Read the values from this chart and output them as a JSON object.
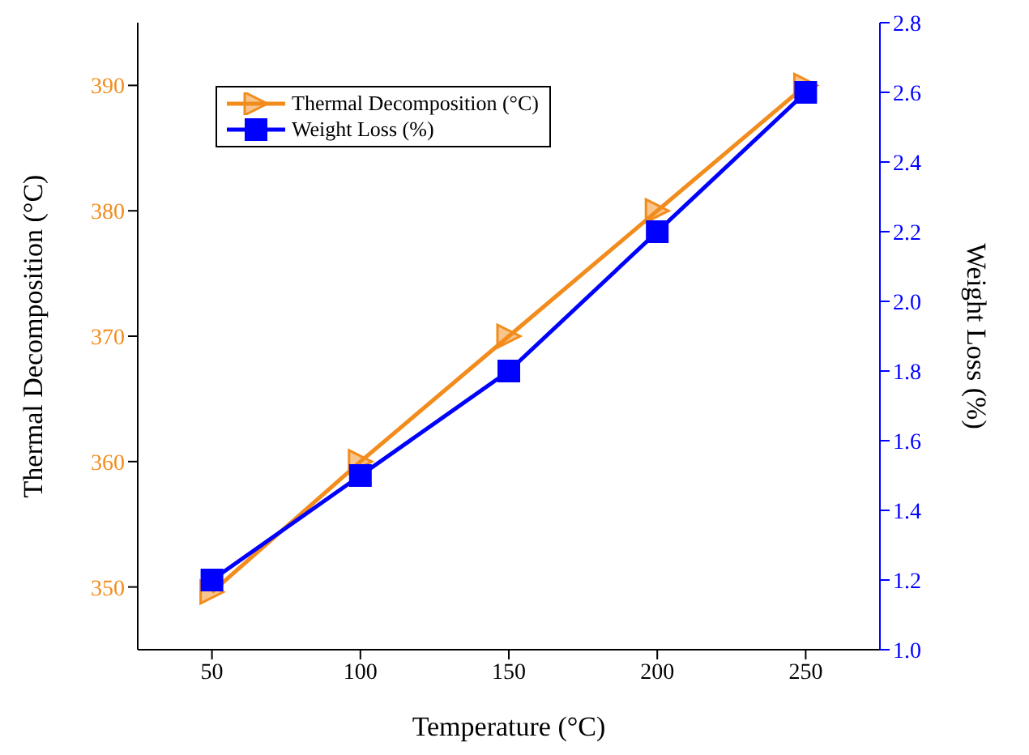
{
  "chart_data": {
    "type": "line",
    "xlabel": "Temperature (°C)",
    "ylabel": "Thermal Decomposition (°C)",
    "y2label": "Weight Loss (%)",
    "x": [
      50,
      100,
      150,
      200,
      250
    ],
    "series": [
      {
        "name": "Thermal Decomposition (°C)",
        "color": "#f28c1c",
        "values": [
          349.6,
          360,
          370,
          380,
          390
        ],
        "marker": "triangle"
      },
      {
        "name": "Weight Loss (%)",
        "color": "#0000ff",
        "values": [
          1.2,
          1.5,
          1.8,
          2.2,
          2.6
        ],
        "axis": "y2",
        "marker": "square"
      }
    ],
    "xlim": [
      25,
      275
    ],
    "xticks": [
      50,
      100,
      150,
      200,
      250
    ],
    "ylim": [
      345,
      395
    ],
    "yticks": [
      350,
      360,
      370,
      380,
      390
    ],
    "y2lim": [
      1.0,
      2.8
    ],
    "y2ticks": [
      {
        "value": 1,
        "label": "1.0"
      },
      1.2,
      1.4,
      1.6,
      1.8,
      {
        "value": 2,
        "label": "2.0"
      },
      2.2,
      2.4,
      2.6,
      2.8
    ],
    "legend": "top left",
    "grid": false,
    "line_style": "solid"
  }
}
